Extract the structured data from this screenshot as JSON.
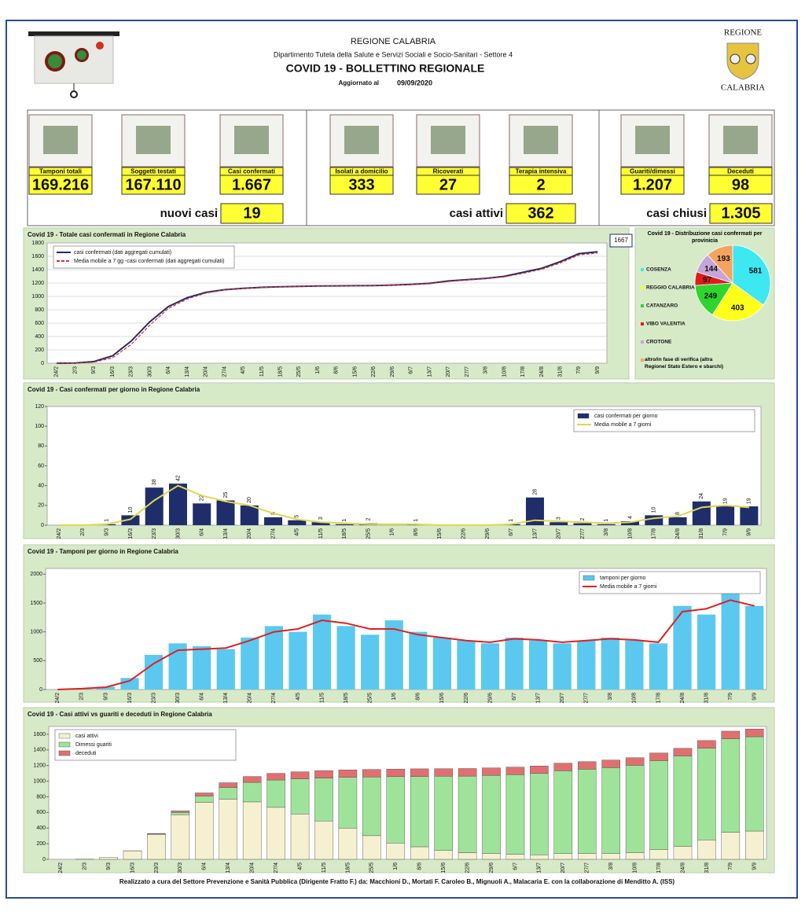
{
  "header": {
    "region": "REGIONE CALABRIA",
    "department": "Dipartimento Tutela della Salute e Servizi Sociali e Socio-Sanitari - Settore 4",
    "title": "COVID 19 - BOLLETTINO REGIONALE",
    "updated_label": "Aggiornato al",
    "updated_date": "09/09/2020",
    "logo_top": "REGIONE",
    "logo_bottom": "CALABRIA"
  },
  "kpi_groups": [
    {
      "tiles": [
        {
          "label": "Tamponi totali",
          "value": "169.216"
        },
        {
          "label": "Soggetti testati",
          "value": "167.110"
        },
        {
          "label": "Casi confermati",
          "value": "1.667"
        }
      ],
      "summary_label": "nuovi casi",
      "summary_value": "19"
    },
    {
      "tiles": [
        {
          "label": "Isolati a domicilio",
          "value": "333"
        },
        {
          "label": "Ricoverati",
          "value": "27"
        },
        {
          "label": "Terapia intensiva",
          "value": "2"
        }
      ],
      "summary_label": "casi attivi",
      "summary_value": "362"
    },
    {
      "tiles": [
        {
          "label": "Guariti/dimessi",
          "value": "1.207"
        },
        {
          "label": "Deceduti",
          "value": "98"
        }
      ],
      "summary_label": "casi chiusi",
      "summary_value": "1.305"
    }
  ],
  "chart_data": [
    {
      "type": "line",
      "title": "Covid 19 - Totale casi confermati in Regione Calabria",
      "categories": [
        "24/2",
        "2/3",
        "9/3",
        "16/3",
        "23/3",
        "30/3",
        "6/4",
        "13/4",
        "20/4",
        "27/4",
        "4/5",
        "11/5",
        "18/5",
        "25/5",
        "1/6",
        "8/6",
        "15/6",
        "22/6",
        "29/6",
        "6/7",
        "13/7",
        "20/7",
        "27/7",
        "3/8",
        "10/8",
        "17/8",
        "24/8",
        "31/8",
        "7/9",
        "9/9"
      ],
      "series": [
        {
          "name": "casi confermati (dati aggregati cumulati)",
          "color": "#1f2d6b",
          "kind": "line",
          "values": [
            0,
            2,
            25,
            110,
            330,
            620,
            850,
            980,
            1060,
            1100,
            1120,
            1135,
            1145,
            1150,
            1155,
            1158,
            1160,
            1162,
            1170,
            1180,
            1195,
            1230,
            1250,
            1270,
            1300,
            1360,
            1420,
            1520,
            1640,
            1667
          ]
        },
        {
          "name": "Media mobile a 7 gg -casi confermati (dati aggregati cumulati)",
          "color": "#e03030",
          "kind": "line",
          "dashed": true,
          "values": [
            0,
            1,
            15,
            80,
            280,
            570,
            820,
            960,
            1050,
            1095,
            1118,
            1133,
            1143,
            1149,
            1154,
            1157,
            1159,
            1161,
            1168,
            1178,
            1190,
            1222,
            1245,
            1265,
            1292,
            1345,
            1405,
            1500,
            1620,
            1650
          ]
        }
      ],
      "ylim": [
        0,
        1800
      ],
      "yticks": [
        0,
        200,
        400,
        600,
        800,
        1000,
        1200,
        1400,
        1600,
        1800
      ],
      "grid": true,
      "legend": "upper left"
    },
    {
      "type": "pie",
      "title": "Covid 19 - Distribuzione casi confermati per provinicia",
      "categories": [
        "COSENZA",
        "REGGIO CALABRIA",
        "CATANZARO",
        "VIBO VALENTIA",
        "CROTONE",
        "altro/in fase di verifica (altra Regione/ Stato Estero e sbarchi)"
      ],
      "values": [
        581,
        403,
        249,
        97,
        144,
        193
      ],
      "colors": [
        "#3ee8f0",
        "#ffff1a",
        "#2ed52e",
        "#e31a1c",
        "#c5a5d8",
        "#f4a460"
      ]
    },
    {
      "type": "bar",
      "title": "Covid 19 - Casi confermati per giorno in Regione Calabria",
      "categories": [
        "24/2",
        "2/3",
        "9/3",
        "16/3",
        "23/3",
        "30/3",
        "6/4",
        "13/4",
        "20/4",
        "27/4",
        "4/5",
        "11/5",
        "18/5",
        "25/5",
        "1/6",
        "8/6",
        "15/6",
        "22/6",
        "29/6",
        "6/7",
        "13/7",
        "20/7",
        "27/7",
        "3/8",
        "10/8",
        "17/8",
        "24/8",
        "31/8",
        "7/9",
        "9/9"
      ],
      "series": [
        {
          "name": "casi confermati per giorno",
          "color": "#1f2d6b",
          "kind": "bar",
          "labels": true,
          "values": [
            0,
            0,
            1,
            10,
            38,
            42,
            22,
            25,
            20,
            8,
            5,
            3,
            1,
            2,
            0,
            1,
            0,
            0,
            0,
            1,
            28,
            3,
            2,
            1,
            4,
            10,
            8,
            24,
            19,
            19
          ]
        },
        {
          "name": "Media mobile a 7 giorni",
          "color": "#e0d84a",
          "kind": "line",
          "values": [
            0,
            0,
            1,
            6,
            25,
            40,
            30,
            24,
            20,
            12,
            6,
            3,
            2,
            1,
            1,
            1,
            0,
            0,
            0,
            1,
            5,
            4,
            3,
            2,
            3,
            7,
            9,
            18,
            20,
            18
          ]
        }
      ],
      "ylim": [
        0,
        120
      ],
      "yticks": [
        0,
        20,
        40,
        60,
        80,
        100,
        120
      ],
      "grid": false,
      "legend": "upper right"
    },
    {
      "type": "bar",
      "title": "Covid 19 - Tamponi per giorno in Regione Calabria",
      "categories": [
        "24/2",
        "2/3",
        "9/3",
        "16/3",
        "23/3",
        "30/3",
        "6/4",
        "13/4",
        "20/4",
        "27/4",
        "4/5",
        "11/5",
        "18/5",
        "25/5",
        "1/6",
        "8/6",
        "15/6",
        "22/6",
        "29/6",
        "6/7",
        "13/7",
        "20/7",
        "27/7",
        "3/8",
        "10/8",
        "17/8",
        "24/8",
        "31/8",
        "7/9",
        "9/9"
      ],
      "series": [
        {
          "name": "tamponi per giorno",
          "color": "#5bc8f0",
          "kind": "bar",
          "values": [
            0,
            20,
            50,
            200,
            600,
            800,
            750,
            700,
            900,
            1100,
            1000,
            1300,
            1100,
            950,
            1200,
            1000,
            900,
            850,
            800,
            900,
            850,
            800,
            850,
            900,
            850,
            800,
            1450,
            1300,
            1700,
            1450
          ]
        },
        {
          "name": "Media mobile a 7 giorni",
          "color": "#e02020",
          "kind": "line",
          "values": [
            0,
            15,
            40,
            150,
            450,
            680,
            700,
            720,
            850,
            1000,
            1050,
            1200,
            1150,
            1050,
            1050,
            950,
            900,
            850,
            820,
            880,
            860,
            820,
            850,
            880,
            860,
            820,
            1350,
            1400,
            1550,
            1450
          ]
        }
      ],
      "ylim": [
        0,
        2100
      ],
      "yticks": [
        0,
        500,
        1000,
        1500,
        2000
      ],
      "grid": false,
      "legend": "upper right"
    },
    {
      "type": "stacked-bar",
      "title": "Covid 19 - Casi attivi vs guariti e deceduti in Regione Calabria",
      "categories": [
        "24/2",
        "2/3",
        "9/3",
        "16/3",
        "23/3",
        "30/3",
        "6/4",
        "13/4",
        "20/4",
        "27/4",
        "4/5",
        "11/5",
        "18/5",
        "25/5",
        "1/6",
        "8/6",
        "15/6",
        "22/6",
        "29/6",
        "6/7",
        "13/7",
        "20/7",
        "27/7",
        "3/8",
        "10/8",
        "17/8",
        "24/8",
        "31/8",
        "7/9",
        "9/9"
      ],
      "series": [
        {
          "name": "casi attivi",
          "color": "#f5f0d0",
          "values": [
            0,
            2,
            25,
            109,
            320,
            570,
            730,
            770,
            735,
            665,
            580,
            490,
            399,
            303,
            208,
            161,
            113,
            85,
            73,
            63,
            58,
            73,
            73,
            73,
            83,
            123,
            163,
            248,
            347,
            362
          ]
        },
        {
          "name": "Dimessi guariti",
          "color": "#9fe39a",
          "values": [
            0,
            0,
            0,
            0,
            5,
            30,
            80,
            150,
            250,
            350,
            450,
            550,
            650,
            750,
            850,
            900,
            950,
            980,
            1000,
            1020,
            1040,
            1060,
            1080,
            1100,
            1120,
            1140,
            1160,
            1175,
            1195,
            1207
          ]
        },
        {
          "name": "deceduti",
          "color": "#e07070",
          "values": [
            0,
            0,
            0,
            1,
            5,
            20,
            40,
            60,
            75,
            85,
            90,
            95,
            96,
            97,
            97,
            97,
            97,
            97,
            97,
            97,
            97,
            97,
            97,
            97,
            97,
            97,
            97,
            97,
            98,
            98
          ]
        }
      ],
      "ylim": [
        0,
        1700
      ],
      "yticks": [
        0,
        200,
        400,
        600,
        800,
        1000,
        1200,
        1400,
        1600
      ],
      "grid": false,
      "legend": "upper left"
    }
  ],
  "footer": "Realizzato a cura del Settore Prevenzione e Sanità Pubblica (Dirigente Fratto F.) da:  Macchioni D., Mortati F. Caroleo B., Mignuoli A., Malacaria E. con la collaborazione di Menditto A. (ISS)"
}
